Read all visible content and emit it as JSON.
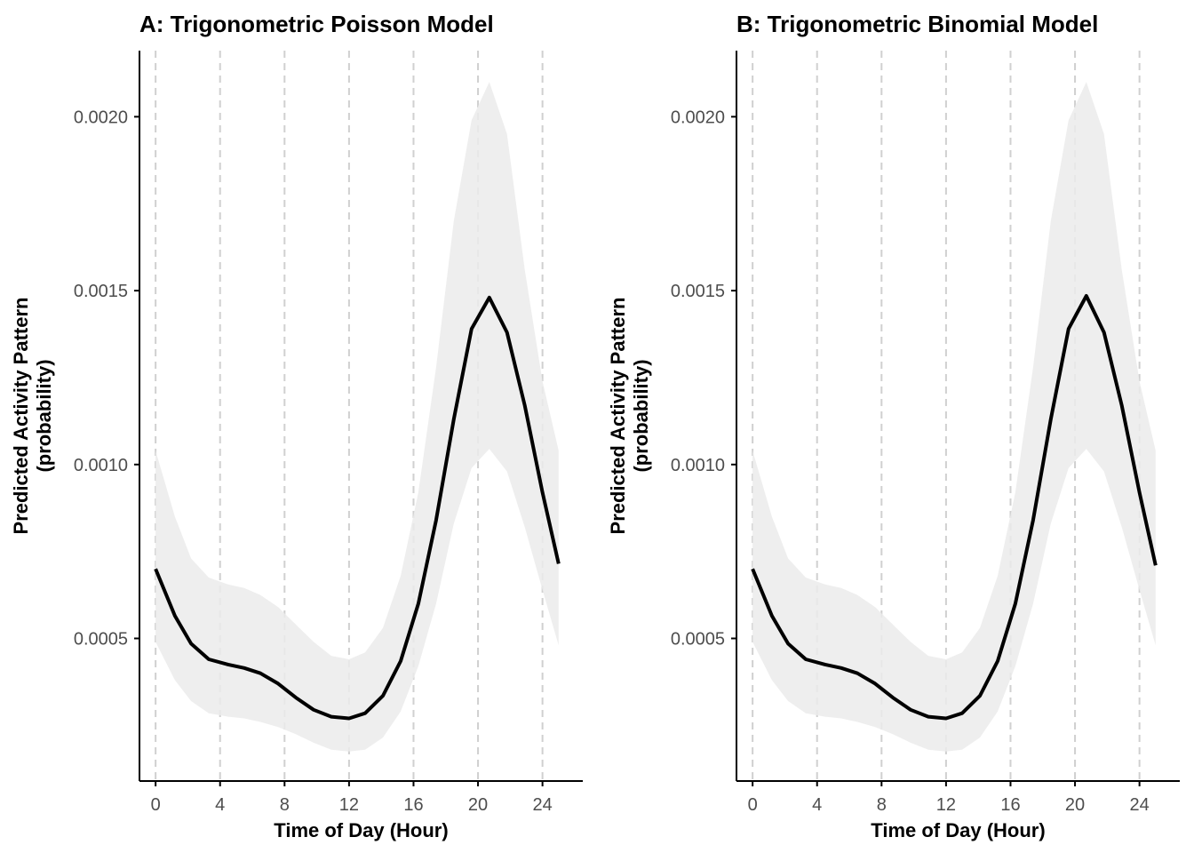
{
  "chart_data": [
    {
      "type": "line",
      "title": "A: Trigonometric Poisson Model",
      "xlabel": "Time of Day (Hour)",
      "ylabel": [
        "Predicted Activity Pattern",
        "(probability)"
      ],
      "xlim": [
        -1,
        26.5
      ],
      "ylim": [
        9e-05,
        0.00219
      ],
      "xticks": [
        0,
        4,
        8,
        12,
        16,
        20,
        24
      ],
      "yticks": [
        0.0005,
        0.001,
        0.0015,
        0.002
      ],
      "ytick_labels": [
        "0.0005",
        "0.0010",
        "0.0015",
        "0.0020"
      ],
      "grid": "dashed vertical lines at x ticks",
      "series": [
        {
          "x": [
            0,
            1.2,
            2.2,
            3.3,
            4.5,
            5.5,
            6.5,
            7.6,
            8.7,
            9.8,
            10.9,
            12,
            13,
            14.1,
            15.2,
            16.3,
            17.4,
            18.5,
            19.6,
            20.7,
            21.8,
            22.9,
            24,
            25
          ],
          "y": [
            0.0007,
            0.000565,
            0.000485,
            0.00044,
            0.000425,
            0.000415,
            0.0004,
            0.00037,
            0.00033,
            0.000295,
            0.000275,
            0.00027,
            0.000285,
            0.000335,
            0.000435,
            0.0006,
            0.00084,
            0.00113,
            0.00139,
            0.00148,
            0.00138,
            0.00117,
            0.00092,
            0.000715
          ],
          "lower": [
            0.00049,
            0.00038,
            0.00032,
            0.000285,
            0.000275,
            0.00027,
            0.00026,
            0.000245,
            0.000225,
            0.0002,
            0.00018,
            0.000175,
            0.00018,
            0.000215,
            0.00029,
            0.00042,
            0.0006,
            0.00083,
            0.00099,
            0.001045,
            0.00098,
            0.00082,
            0.00064,
            0.00048
          ],
          "upper": [
            0.00104,
            0.00085,
            0.00073,
            0.000675,
            0.000655,
            0.000645,
            0.000625,
            0.00059,
            0.00054,
            0.00049,
            0.00045,
            0.00044,
            0.00046,
            0.00053,
            0.00068,
            0.00092,
            0.00128,
            0.0017,
            0.00199,
            0.0021,
            0.00195,
            0.00156,
            0.00124,
            0.00104
          ]
        }
      ]
    },
    {
      "type": "line",
      "title": "B: Trigonometric Binomial Model",
      "xlabel": "Time of Day (Hour)",
      "ylabel": [
        "Predicted Activity Pattern",
        "(probability)"
      ],
      "xlim": [
        -1,
        26.5
      ],
      "ylim": [
        9e-05,
        0.00219
      ],
      "xticks": [
        0,
        4,
        8,
        12,
        16,
        20,
        24
      ],
      "yticks": [
        0.0005,
        0.001,
        0.0015,
        0.002
      ],
      "ytick_labels": [
        "0.0005",
        "0.0010",
        "0.0015",
        "0.0020"
      ],
      "grid": "dashed vertical lines at x ticks",
      "series": [
        {
          "x": [
            0,
            1.2,
            2.2,
            3.3,
            4.5,
            5.5,
            6.5,
            7.6,
            8.7,
            9.8,
            10.9,
            12,
            13,
            14.1,
            15.2,
            16.3,
            17.4,
            18.5,
            19.6,
            20.7,
            21.8,
            22.9,
            24,
            25
          ],
          "y": [
            0.0007,
            0.000565,
            0.000485,
            0.00044,
            0.000425,
            0.000415,
            0.0004,
            0.00037,
            0.00033,
            0.000295,
            0.000275,
            0.00027,
            0.000285,
            0.000335,
            0.000435,
            0.0006,
            0.00084,
            0.00113,
            0.00139,
            0.001485,
            0.00138,
            0.00117,
            0.00092,
            0.00071
          ],
          "lower": [
            0.00049,
            0.00038,
            0.00032,
            0.000285,
            0.000275,
            0.00027,
            0.00026,
            0.000245,
            0.000225,
            0.0002,
            0.00018,
            0.000175,
            0.00018,
            0.000215,
            0.00029,
            0.00042,
            0.0006,
            0.00083,
            0.00099,
            0.001045,
            0.00098,
            0.00082,
            0.00064,
            0.00048
          ],
          "upper": [
            0.00104,
            0.00085,
            0.00073,
            0.000675,
            0.000655,
            0.000645,
            0.000625,
            0.00059,
            0.00054,
            0.00049,
            0.00045,
            0.00044,
            0.00046,
            0.00053,
            0.00068,
            0.00092,
            0.00128,
            0.0017,
            0.00199,
            0.0021,
            0.00195,
            0.00156,
            0.00124,
            0.00104
          ]
        }
      ]
    }
  ],
  "colors": {
    "line": "#000000",
    "ribbon": "#ebebeb",
    "grid": "#d0d0d0",
    "axis": "#000000",
    "tick_text": "#4d4d4d"
  }
}
